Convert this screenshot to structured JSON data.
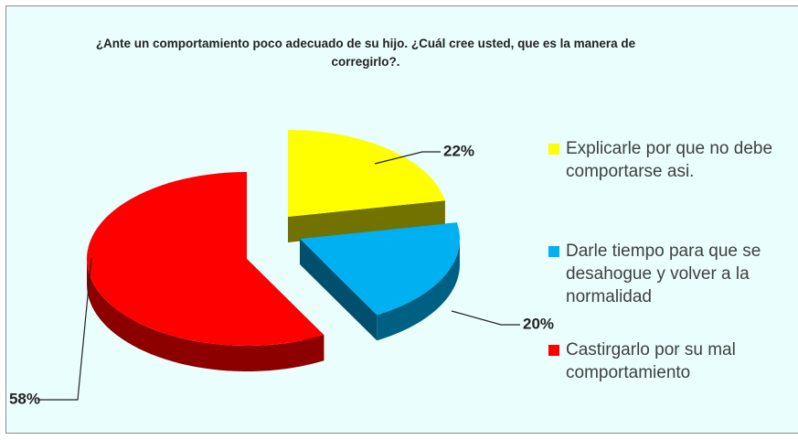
{
  "chart_data": {
    "type": "pie",
    "title": "¿Ante un comportamiento poco adecuado de su hijo. ¿Cuál cree usted, que es la manera de corregirlo?.",
    "categories": [
      "Explicarle por que no debe comportarse asi.",
      "Darle tiempo para que se desahogue y volver a la normalidad",
      "Castirgarlo por su mal comportamiento"
    ],
    "values": [
      22,
      20,
      58
    ],
    "value_labels": [
      "22%",
      "20%",
      "58%"
    ],
    "colors": [
      "#ffff00",
      "#00b0f0",
      "#ff0000"
    ],
    "legend": "right"
  }
}
